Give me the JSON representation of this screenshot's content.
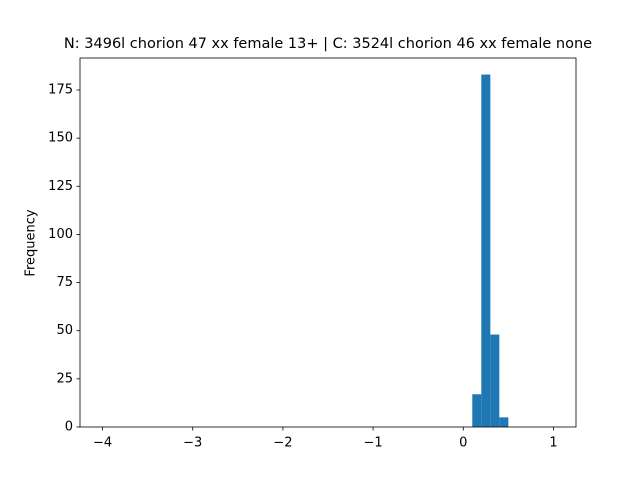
{
  "chart_data": {
    "type": "histogram",
    "title": "N: 3496l chorion 47 xx female 13+ | C: 3524l chorion 46 xx female none",
    "ylabel": "Frequency",
    "color": "#1f77b4",
    "bins": [
      -4,
      -3.9,
      -3.8,
      -3.7,
      -3.6,
      -3.5,
      -3.4,
      -3.3,
      -3.2,
      -3.1,
      -3,
      -2.9,
      -2.8,
      -2.7,
      -2.6,
      -2.5,
      -2.4,
      -2.3,
      -2.2,
      -2.1,
      -2,
      -1.9,
      -1.8,
      -1.7,
      -1.6,
      -1.5,
      -1.4,
      -1.3,
      -1.2,
      -1.1,
      -1,
      -0.9,
      -0.8,
      -0.7,
      -0.6,
      -0.5,
      -0.4,
      -0.3,
      -0.2,
      -0.1,
      0,
      0.1,
      0.2,
      0.3,
      0.4,
      0.5,
      0.6,
      0.7,
      0.8,
      0.9,
      1
    ],
    "counts": [
      0,
      0,
      0,
      0,
      0,
      0,
      0,
      0,
      0,
      0,
      0,
      0,
      0,
      0,
      0,
      0,
      0,
      0,
      0,
      0,
      0,
      0,
      0,
      0,
      0,
      0,
      0,
      0,
      0,
      0,
      0,
      0,
      0,
      0,
      0,
      0,
      0,
      0,
      0,
      0,
      0,
      17,
      183,
      48,
      5,
      0,
      0,
      0,
      0,
      0
    ],
    "xlim": [
      -4.25,
      1.25
    ],
    "ylim": [
      0,
      191.6
    ],
    "xticks": [
      {
        "value": -4,
        "label": "−4"
      },
      {
        "value": -3,
        "label": "−3"
      },
      {
        "value": -2,
        "label": "−2"
      },
      {
        "value": -1,
        "label": "−1"
      },
      0,
      1
    ],
    "yticks": [
      0,
      25,
      50,
      75,
      100,
      125,
      150,
      175
    ]
  }
}
